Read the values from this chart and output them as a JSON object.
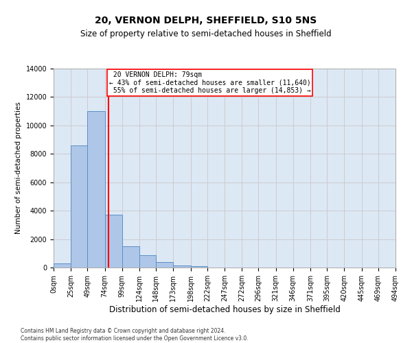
{
  "title": "20, VERNON DELPH, SHEFFIELD, S10 5NS",
  "subtitle": "Size of property relative to semi-detached houses in Sheffield",
  "xlabel": "Distribution of semi-detached houses by size in Sheffield",
  "ylabel": "Number of semi-detached properties",
  "property_size": 79,
  "property_label": "20 VERNON DELPH: 79sqm",
  "pct_smaller": 43,
  "pct_larger": 55,
  "n_smaller": 11640,
  "n_larger": 14853,
  "bin_edges": [
    0,
    25,
    49,
    74,
    99,
    124,
    148,
    173,
    198,
    222,
    247,
    272,
    296,
    321,
    346,
    371,
    395,
    420,
    445,
    469,
    494
  ],
  "bin_labels": [
    "0sqm",
    "25sqm",
    "49sqm",
    "74sqm",
    "99sqm",
    "124sqm",
    "148sqm",
    "173sqm",
    "198sqm",
    "222sqm",
    "247sqm",
    "272sqm",
    "296sqm",
    "321sqm",
    "346sqm",
    "371sqm",
    "395sqm",
    "420sqm",
    "445sqm",
    "469sqm",
    "494sqm"
  ],
  "bar_heights": [
    300,
    8600,
    11000,
    3700,
    1500,
    850,
    400,
    150,
    100,
    0,
    0,
    0,
    0,
    0,
    0,
    0,
    0,
    0,
    0,
    0
  ],
  "bar_color": "#aec6e8",
  "bar_edge_color": "#5a8fc4",
  "grid_color": "#cccccc",
  "bg_color": "#dde8f5",
  "ylim": [
    0,
    14000
  ],
  "yticks": [
    0,
    2000,
    4000,
    6000,
    8000,
    10000,
    12000,
    14000
  ],
  "title_fontsize": 10,
  "subtitle_fontsize": 8.5,
  "xlabel_fontsize": 8.5,
  "ylabel_fontsize": 7.5,
  "tick_fontsize": 7,
  "annot_fontsize": 7,
  "footnote_fontsize": 5.5,
  "footnote": "Contains HM Land Registry data © Crown copyright and database right 2024.\nContains public sector information licensed under the Open Government Licence v3.0."
}
